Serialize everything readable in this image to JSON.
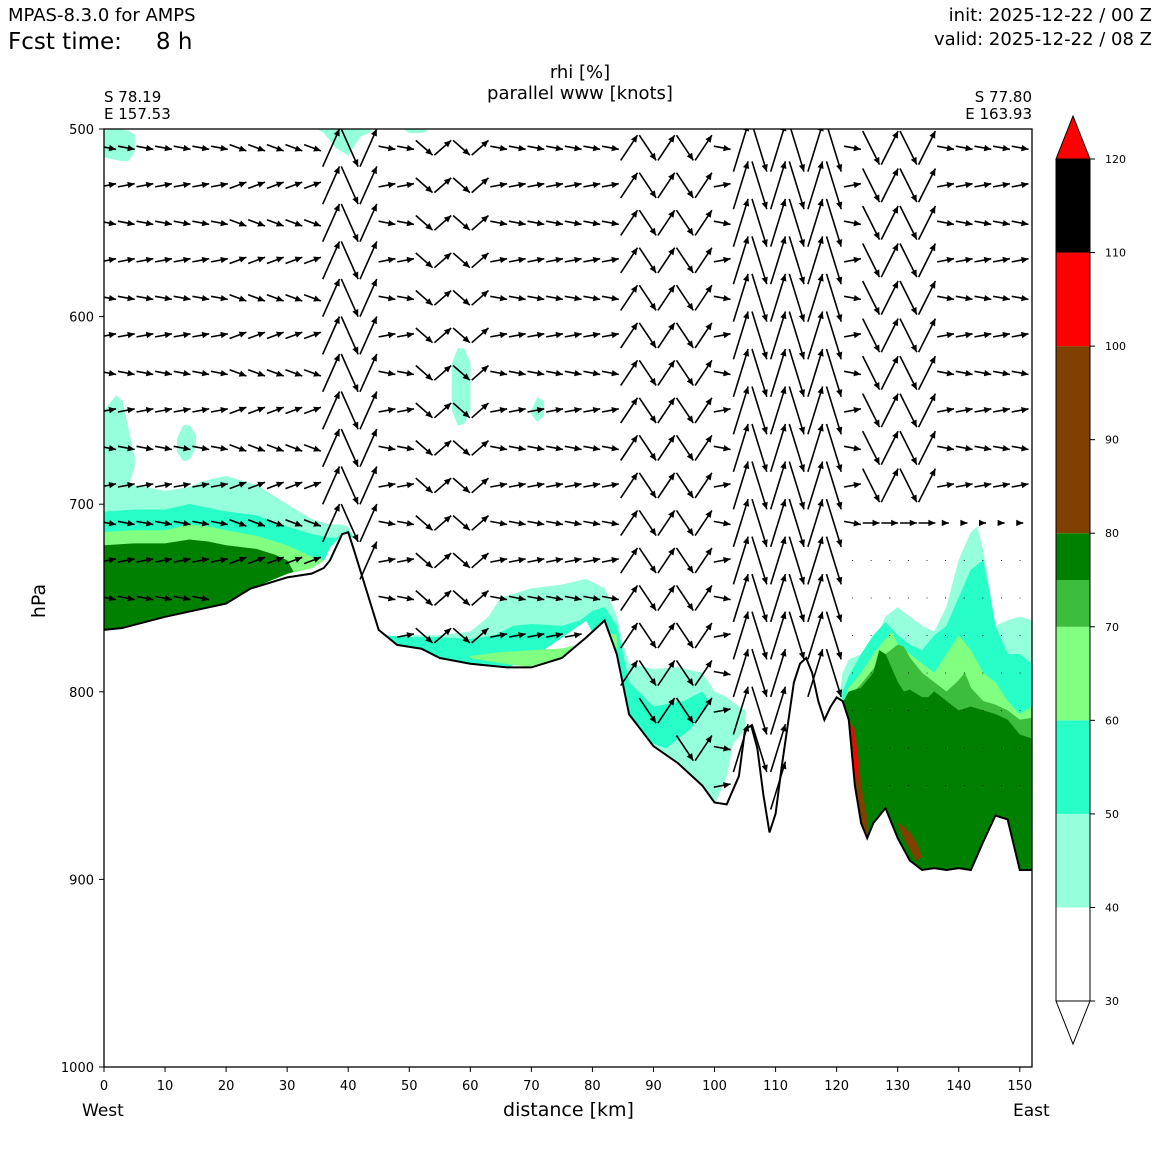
{
  "header": {
    "model": "MPAS-8.3.0 for AMPS",
    "fcst_label": "Fcst time:",
    "fcst_value": "8 h",
    "init": "init: 2025-12-22 / 00 Z",
    "valid": "valid: 2025-12-22 / 08 Z"
  },
  "endpoints": {
    "west_lat": "S 78.19",
    "west_lon": "E 157.53",
    "east_lat": "S 77.80",
    "east_lon": "E 163.93",
    "west_label": "West",
    "east_label": "East"
  },
  "colors": {
    "bands": [
      "#ffffff",
      "#96ffdc",
      "#28ffc8",
      "#80ff80",
      "#3cbe3c",
      "#008000",
      "#804000",
      "#ff0000"
    ],
    "terrain_line": "#000000",
    "arrow": "#000000"
  },
  "chart_data": {
    "type": "cross-section",
    "title": "rhi [%]",
    "subtitle": "parallel www [knots]",
    "xlabel": "distance [km]",
    "ylabel": "hPa",
    "xlim": [
      0,
      152
    ],
    "ylim": [
      1000,
      500
    ],
    "x_ticks": [
      0,
      10,
      20,
      30,
      40,
      50,
      60,
      70,
      80,
      90,
      100,
      110,
      120,
      130,
      140,
      150
    ],
    "y_ticks": [
      500,
      600,
      700,
      800,
      900,
      1000
    ],
    "colorbar": {
      "label_values": [
        30,
        40,
        50,
        60,
        70,
        80,
        90,
        100,
        110,
        120
      ],
      "levels": [
        40,
        50,
        60,
        70,
        75,
        80,
        100,
        110,
        120
      ],
      "extend": "both"
    },
    "terrain_surface": {
      "x": [
        0,
        3,
        10,
        20,
        24,
        30,
        34,
        36,
        37,
        38,
        39,
        40,
        41,
        43,
        45,
        48,
        52,
        55,
        60,
        66,
        70,
        75,
        79,
        82,
        84,
        86,
        90,
        94,
        98,
        100,
        102,
        104,
        105,
        106,
        107,
        108,
        109,
        110,
        111,
        113,
        114,
        115,
        116,
        117,
        118,
        119,
        120,
        121,
        122,
        123,
        124,
        125,
        126,
        128,
        130,
        132,
        134,
        136,
        138,
        140,
        142,
        144,
        146,
        148,
        150,
        152
      ],
      "p": [
        767,
        766,
        760,
        753,
        745,
        739,
        737,
        734,
        730,
        723,
        716,
        715,
        725,
        746,
        767,
        775,
        777,
        782,
        785,
        787,
        787,
        782,
        771,
        762,
        780,
        812,
        829,
        838,
        850,
        859,
        860,
        845,
        820,
        818,
        830,
        855,
        875,
        865,
        840,
        795,
        785,
        782,
        790,
        805,
        815,
        808,
        803,
        805,
        815,
        850,
        870,
        878,
        870,
        862,
        878,
        890,
        895,
        894,
        895,
        894,
        895,
        880,
        866,
        868,
        895,
        895
      ]
    },
    "rh_layers": [
      {
        "level": 40,
        "regions": [
          {
            "x": [
              0,
              2,
              4,
              5,
              5,
              4,
              3,
              0
            ],
            "p": [
              501,
              500,
              501,
              503,
              512,
              517,
              517,
              515
            ]
          },
          {
            "x": [
              35,
              37,
              40,
              43,
              44,
              42,
              40,
              38,
              36
            ],
            "p": [
              500,
              499,
              499,
              500,
              501,
              504,
              514,
              510,
              502
            ]
          },
          {
            "x": [
              49,
              50,
              52,
              53,
              52,
              50
            ],
            "p": [
              500,
              499,
              500,
              501,
              502,
              502
            ]
          },
          {
            "x": [
              0,
              2,
              3,
              4,
              5,
              5,
              4,
              2,
              0
            ],
            "p": [
              650,
              642,
              645,
              660,
              675,
              680,
              690,
              692,
              695
            ]
          },
          {
            "x": [
              12,
              13,
              14,
              15,
              15,
              14,
              13,
              12
            ],
            "p": [
              665,
              658,
              658,
              663,
              670,
              676,
              677,
              672
            ]
          },
          {
            "x": [
              57,
              58,
              59,
              60,
              60,
              59,
              58,
              57
            ],
            "p": [
              625,
              617,
              617,
              625,
              650,
              657,
              658,
              650
            ]
          },
          {
            "x": [
              70,
              71,
              72,
              72,
              71,
              70
            ],
            "p": [
              650,
              643,
              645,
              653,
              656,
              652
            ]
          },
          {
            "x": [
              0,
              5,
              10,
              14,
              16,
              20,
              25,
              30,
              34,
              37,
              39,
              40,
              40.5,
              41,
              39,
              37,
              36,
              34,
              30,
              24,
              20,
              10,
              3,
              0
            ],
            "p": [
              692,
              690,
              693,
              691,
              688,
              685,
              690,
              700,
              708,
              711,
              711,
              712,
              716,
              718,
              716,
              723,
              730,
              734,
              737,
              745,
              753,
              760,
              766,
              767
            ]
          },
          {
            "x": [
              44,
              46,
              48,
              50,
              55,
              60,
              63,
              65,
              70,
              75,
              79,
              82,
              84,
              85,
              86,
              90,
              94,
              98,
              100,
              102,
              104,
              105,
              105,
              103,
              102,
              100,
              98,
              94,
              90,
              86,
              84,
              82,
              79,
              75,
              70,
              66,
              60,
              55,
              52,
              48,
              45
            ],
            "p": [
              765,
              770,
              772,
              770,
              770,
              768,
              760,
              750,
              745,
              743,
              740,
              745,
              760,
              775,
              785,
              788,
              787,
              790,
              800,
              803,
              808,
              810,
              820,
              828,
              845,
              860,
              859,
              850,
              838,
              829,
              812,
              780,
              762,
              771,
              782,
              787,
              785,
              782,
              777,
              775,
              767
            ]
          },
          {
            "x": [
              120,
              121,
              122,
              124,
              126,
              128,
              130,
              132,
              134,
              136,
              138,
              140,
              142,
              143,
              144,
              146,
              148,
              150,
              152,
              152,
              120
            ],
            "p": [
              815,
              790,
              783,
              780,
              775,
              760,
              755,
              760,
              765,
              768,
              755,
              730,
              715,
              712,
              725,
              765,
              762,
              760,
              762,
              895,
              895
            ]
          }
        ]
      },
      {
        "level": 50,
        "regions": [
          {
            "x": [
              0,
              5,
              10,
              14,
              17,
              20,
              25,
              30,
              34,
              37,
              38,
              40,
              40.5,
              41,
              39,
              37,
              36,
              34,
              30,
              24,
              20,
              10,
              3,
              0
            ],
            "p": [
              704,
              703,
              703,
              700,
              702,
              704,
              706,
              712,
              716,
              718,
              718,
              714,
              716,
              718,
              716,
              723,
              730,
              734,
              737,
              745,
              753,
              760,
              766,
              767
            ]
          },
          {
            "x": [
              46,
              50,
              55,
              60,
              64,
              67,
              70,
              75,
              78,
              80,
              82,
              84,
              85,
              86,
              90,
              95,
              98,
              99,
              96,
              92,
              88,
              86,
              84,
              82,
              79,
              75,
              70,
              66,
              60,
              55,
              52,
              48,
              45
            ],
            "p": [
              770,
              771,
              771,
              772,
              770,
              765,
              764,
              765,
              762,
              757,
              755,
              765,
              780,
              795,
              808,
              805,
              800,
              805,
              820,
              830,
              825,
              818,
              812,
              780,
              762,
              771,
              782,
              787,
              785,
              782,
              777,
              775,
              767
            ]
          },
          {
            "x": [
              121,
              122,
              124,
              126,
              128,
              130,
              132,
              134,
              136,
              138,
              140,
              142,
              144,
              146,
              148,
              150,
              152,
              152,
              121
            ],
            "p": [
              800,
              792,
              780,
              770,
              763,
              770,
              775,
              778,
              770,
              765,
              750,
              735,
              730,
              765,
              780,
              780,
              785,
              895,
              895
            ]
          }
        ]
      },
      {
        "level": 60,
        "regions": [
          {
            "x": [
              0,
              5,
              10,
              14,
              17,
              20,
              25,
              30,
              34,
              36,
              34,
              30,
              24,
              20,
              10,
              3,
              0
            ],
            "p": [
              715,
              714,
              714,
              711,
              712,
              714,
              717,
              722,
              728,
              730,
              734,
              737,
              745,
              753,
              760,
              766,
              767
            ]
          },
          {
            "x": [
              60,
              65,
              70,
              75,
              79,
              82,
              84,
              84,
              82,
              79,
              75,
              70,
              66,
              60
            ],
            "p": [
              781,
              779,
              778,
              777,
              774,
              768,
              770,
              777,
              762,
              771,
              782,
              787,
              785,
              782
            ]
          },
          {
            "x": [
              121,
              122,
              124,
              126,
              128,
              129,
              130,
              132,
              134,
              136,
              138,
              140,
              142,
              144,
              146,
              148,
              150,
              152,
              152,
              121
            ],
            "p": [
              808,
              798,
              790,
              780,
              772,
              768,
              775,
              780,
              785,
              790,
              780,
              770,
              778,
              790,
              795,
              805,
              812,
              808,
              895,
              895
            ]
          }
        ]
      },
      {
        "level": 70,
        "regions": [
          {
            "x": [
              121,
              122,
              124,
              126,
              128,
              130,
              131,
              132,
              134,
              136,
              138,
              140,
              141,
              142,
              144,
              146,
              148,
              150,
              152,
              152,
              121
            ],
            "p": [
              810,
              803,
              796,
              788,
              780,
              775,
              776,
              782,
              790,
              795,
              800,
              794,
              790,
              798,
              805,
              807,
              810,
              815,
              814,
              895,
              895
            ]
          }
        ]
      },
      {
        "level": 80,
        "regions": [
          {
            "x": [
              0,
              5,
              10,
              14,
              17,
              20,
              25,
              28,
              30,
              31,
              30,
              24,
              20,
              10,
              3,
              0
            ],
            "p": [
              722,
              721,
              721,
              719,
              720,
              722,
              724,
              727,
              730,
              736,
              737,
              745,
              753,
              760,
              766,
              767
            ]
          },
          {
            "x": [
              120,
              121,
              122,
              124,
              126,
              127,
              128,
              130,
              131,
              132,
              134,
              135,
              136,
              138,
              140,
              142,
              144,
              146,
              148,
              150,
              152,
              152,
              120
            ],
            "p": [
              812,
              806,
              800,
              798,
              790,
              778,
              780,
              795,
              800,
              799,
              803,
              803,
              800,
              805,
              810,
              808,
              810,
              812,
              815,
              823,
              825,
              895,
              895
            ]
          }
        ]
      },
      {
        "level": 100,
        "regions": [
          {
            "x": [
              122,
              123,
              124,
              125,
              125,
              124,
              123
            ],
            "p": [
              815,
              820,
              850,
              868,
              878,
              876,
              850
            ]
          },
          {
            "x": [
              130,
              131,
              132,
              133,
              134,
              133,
              131
            ],
            "p": [
              870,
              872,
              875,
              880,
              888,
              890,
              878
            ]
          }
        ]
      },
      {
        "level": 110,
        "regions": [
          {
            "x": [
              122.5,
              123,
              123.5,
              123.5,
              123
            ],
            "p": [
              818,
              825,
              835,
              848,
              845
            ]
          }
        ]
      }
    ],
    "wind_field": {
      "levels_hPa": [
        510,
        530,
        550,
        570,
        590,
        610,
        630,
        650,
        670,
        690,
        710,
        730,
        750,
        770,
        790,
        810,
        830,
        850
      ],
      "x_spacing_km": 3.05,
      "description": "along-section wind arrows (knots); strong alternating up/down motion near 40, 55-60, 88-92, 105-120, 125-135 km"
    }
  }
}
